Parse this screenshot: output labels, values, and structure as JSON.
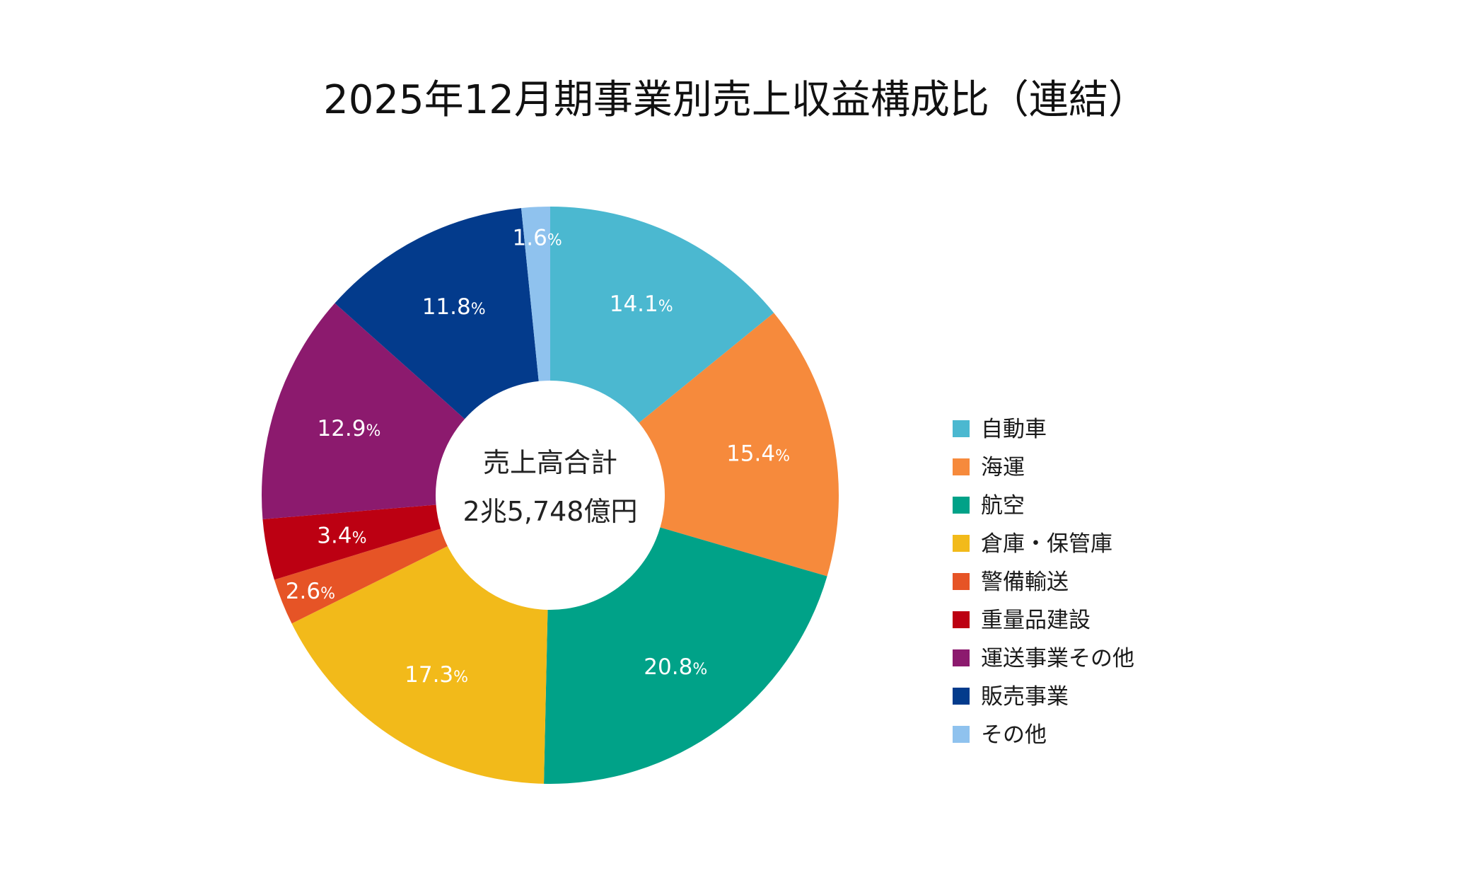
{
  "chart_data": {
    "type": "pie",
    "title": "2025年12月期事業別売上収益構成比（連結）",
    "center_label": "売上高合計",
    "center_value": "2兆5,748億円",
    "unit_suffix": "%",
    "legend_position": "right",
    "categories": [
      "自動車",
      "海運",
      "航空",
      "倉庫・保管庫",
      "警備輸送",
      "重量品建設",
      "運送事業その他",
      "販売事業",
      "その他"
    ],
    "values": [
      14.1,
      15.4,
      20.8,
      17.3,
      2.6,
      3.4,
      12.9,
      11.8,
      1.6
    ],
    "value_labels": [
      "14.1",
      "15.4",
      "20.8",
      "17.3",
      "2.6",
      "3.4",
      "12.9",
      "11.8",
      "1.6"
    ],
    "colors": [
      "#4BB8D0",
      "#F68A3C",
      "#00A288",
      "#F2BA1A",
      "#E65426",
      "#BC0012",
      "#8C1A6E",
      "#033B8C",
      "#8FC2EE"
    ]
  }
}
